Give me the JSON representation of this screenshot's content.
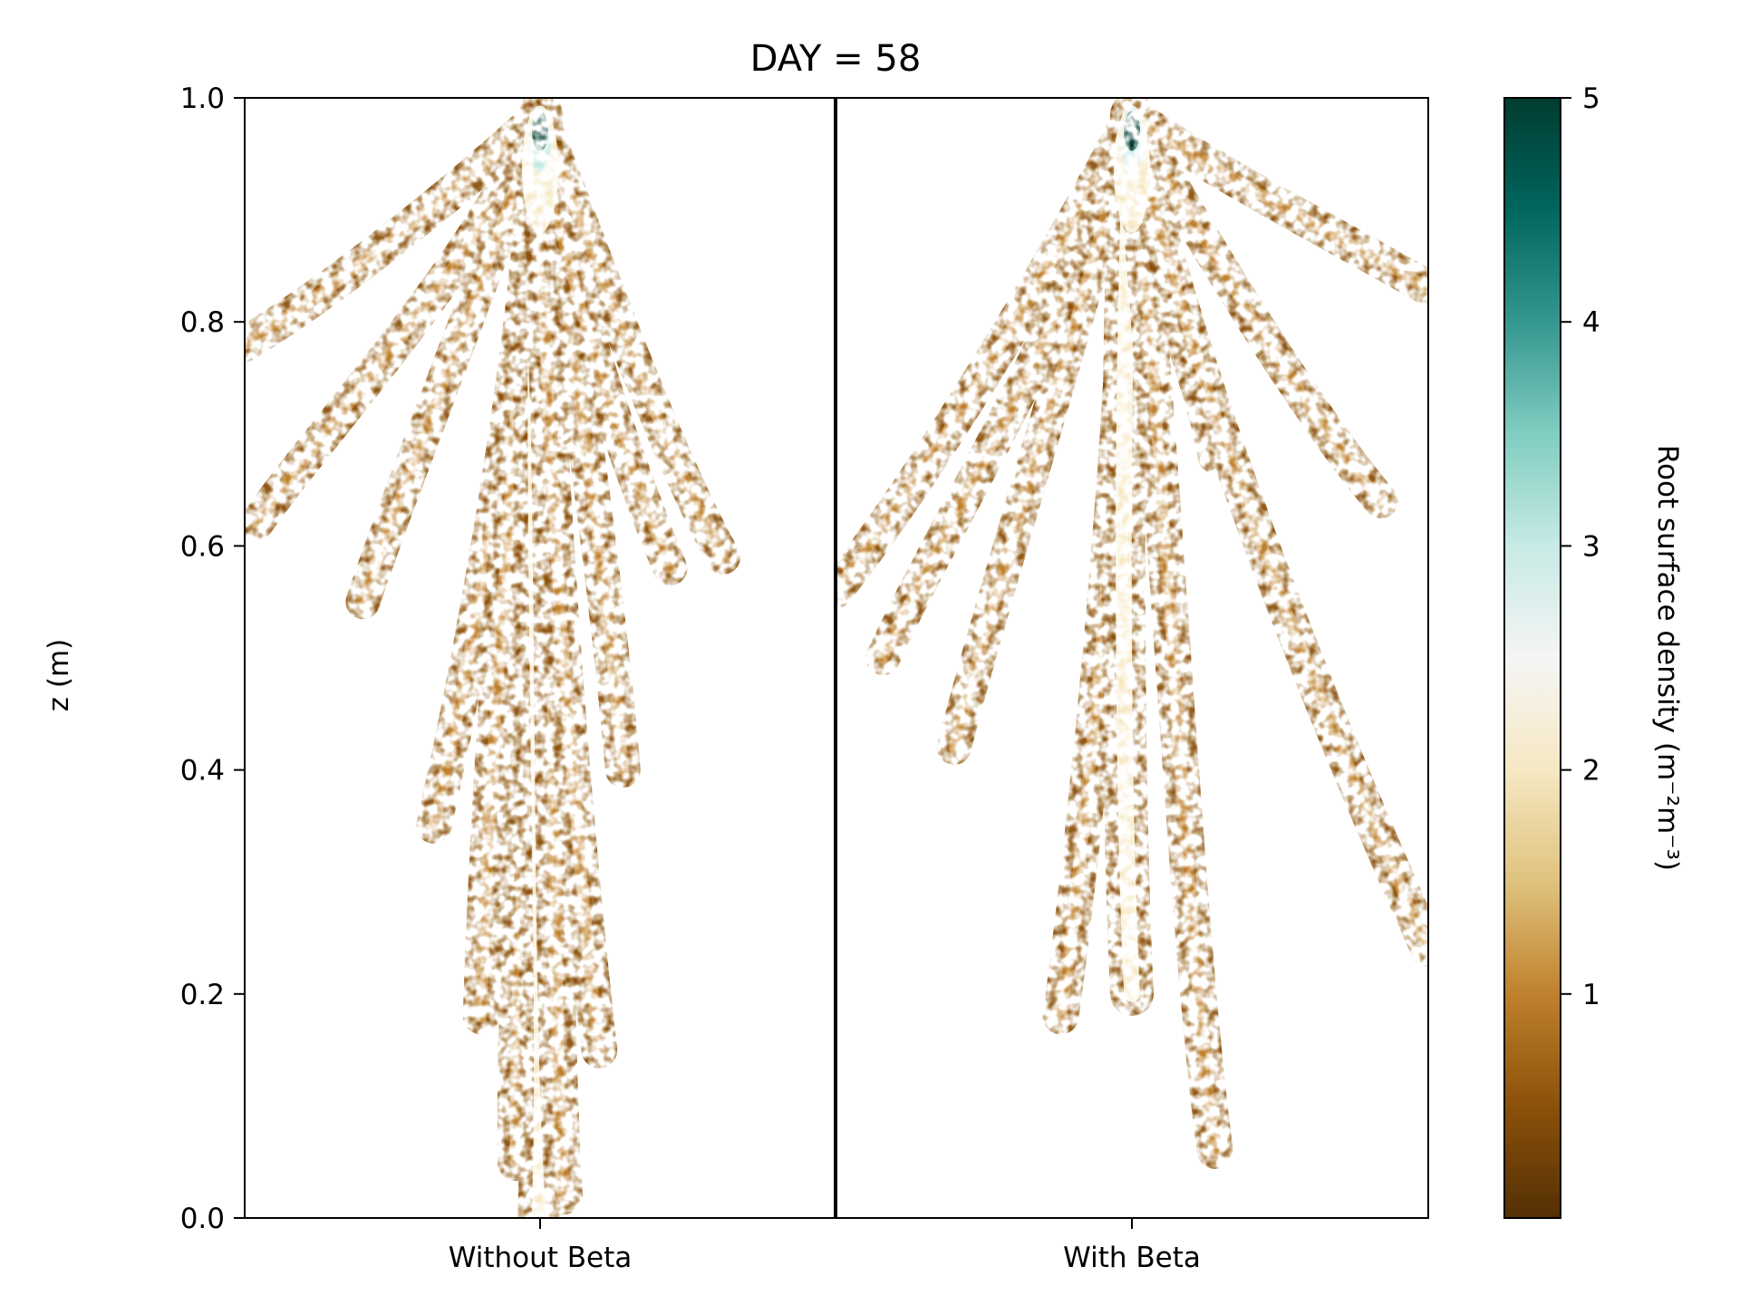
{
  "chart_data": {
    "type": "heatmap",
    "title": "DAY = 58",
    "ylabel": "z (m)",
    "xlabel": "",
    "ylim": [
      0.0,
      1.0
    ],
    "yticks": [
      0.0,
      0.2,
      0.4,
      0.6,
      0.8,
      1.0
    ],
    "ytick_labels": [
      "0.0",
      "0.2",
      "0.4",
      "0.6",
      "0.8",
      "1.0"
    ],
    "grid": false,
    "panels": [
      {
        "label": "Without Beta",
        "apex": {
          "z": 0.985
        },
        "branches": [
          {
            "end": [
              -0.5,
              0.78
            ],
            "density": 0.9
          },
          {
            "end": [
              -0.48,
              0.62
            ],
            "density": 0.8
          },
          {
            "end": [
              -0.3,
              0.55
            ],
            "density": 0.8
          },
          {
            "end": [
              -0.18,
              0.35
            ],
            "density": 0.9
          },
          {
            "end": [
              -0.1,
              0.18
            ],
            "density": 1.0
          },
          {
            "end": [
              -0.04,
              0.05
            ],
            "density": 1.2
          },
          {
            "end": [
              0.0,
              0.0
            ],
            "density": 2.0
          },
          {
            "end": [
              0.04,
              0.02
            ],
            "density": 1.2
          },
          {
            "end": [
              0.1,
              0.15
            ],
            "density": 1.0
          },
          {
            "end": [
              0.14,
              0.4
            ],
            "density": 0.9
          },
          {
            "end": [
              0.22,
              0.58
            ],
            "density": 0.8
          },
          {
            "end": [
              0.31,
              0.59
            ],
            "density": 0.8
          }
        ],
        "peak_density": 5.0
      },
      {
        "label": "With Beta",
        "apex": {
          "z": 0.985
        },
        "branches": [
          {
            "end": [
              -0.5,
              0.56
            ],
            "density": 0.9
          },
          {
            "end": [
              -0.42,
              0.5
            ],
            "density": 0.8
          },
          {
            "end": [
              -0.3,
              0.42
            ],
            "density": 0.8
          },
          {
            "end": [
              -0.12,
              0.18
            ],
            "density": 1.0
          },
          {
            "end": [
              0.0,
              0.2
            ],
            "density": 1.8
          },
          {
            "end": [
              0.14,
              0.06
            ],
            "density": 1.0
          },
          {
            "end": [
              0.14,
              0.68
            ],
            "density": 0.8
          },
          {
            "end": [
              0.42,
              0.64
            ],
            "density": 0.8
          },
          {
            "end": [
              0.5,
              0.24
            ],
            "density": 0.9
          },
          {
            "end": [
              0.5,
              0.83
            ],
            "density": 0.9
          }
        ],
        "peak_density": 4.8
      }
    ],
    "colorbar": {
      "label": "Root surface density (m⁻²m⁻³)",
      "range": [
        0,
        5
      ],
      "ticks": [
        1,
        2,
        3,
        4,
        5
      ],
      "tick_labels": [
        "1",
        "2",
        "3",
        "4",
        "5"
      ],
      "colormap": [
        "#543005",
        "#8c510a",
        "#bf812d",
        "#dfc27d",
        "#f6e8c3",
        "#f5f5f5",
        "#c7eae5",
        "#80cdc1",
        "#35978f",
        "#01665e",
        "#003c30"
      ]
    }
  }
}
